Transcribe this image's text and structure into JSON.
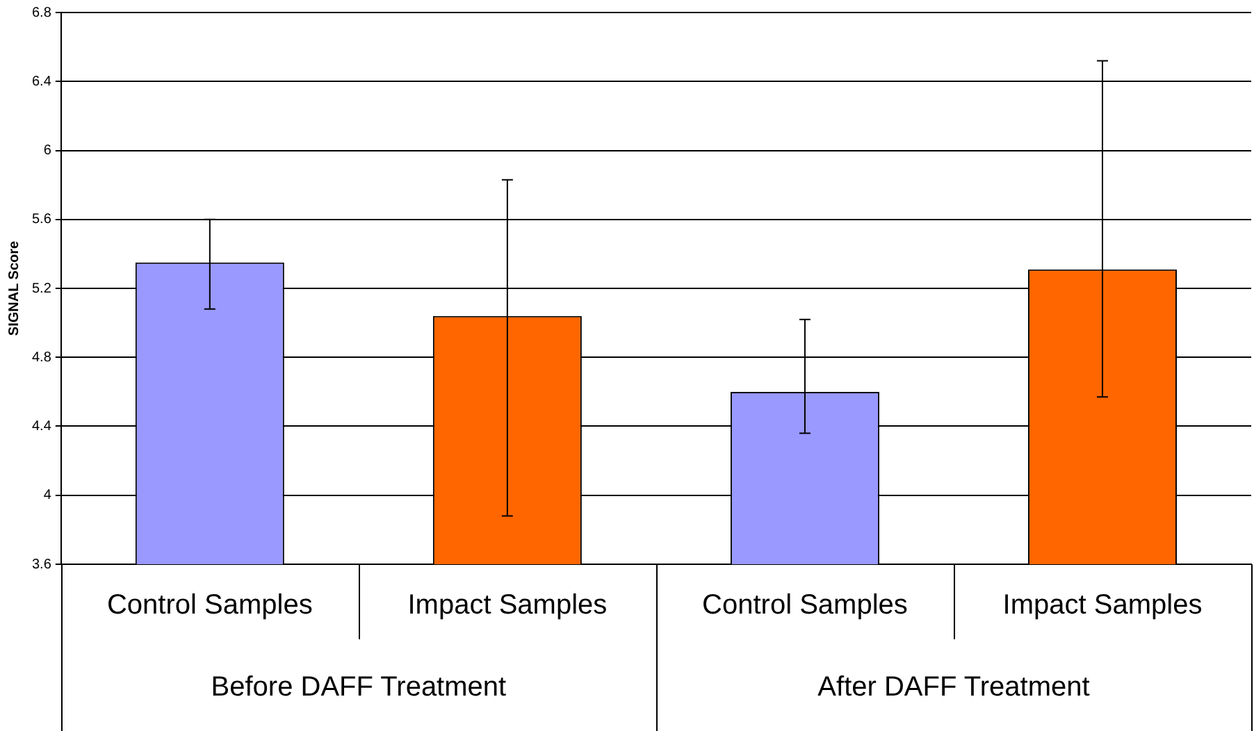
{
  "chart_data": {
    "type": "bar",
    "ylabel": "SIGNAL Score",
    "categories": [
      "Control Samples",
      "Impact Samples",
      "Control Samples",
      "Impact Samples"
    ],
    "values": [
      5.35,
      5.04,
      4.6,
      5.31
    ],
    "colors": [
      "#9999ff",
      "#ff6600",
      "#9999ff",
      "#ff6600"
    ],
    "errors": [
      [
        5.08,
        5.6
      ],
      [
        3.88,
        5.83
      ],
      [
        4.36,
        5.02
      ],
      [
        4.57,
        6.52
      ]
    ],
    "ylim": [
      3.6,
      6.8
    ],
    "yticks": [
      3.6,
      4,
      4.4,
      4.8,
      5.2,
      5.6,
      6,
      6.4,
      6.8
    ],
    "annotations": [
      "Before DAFF Treatment",
      "After DAFF Treatment"
    ],
    "grid": "y",
    "legend": false
  }
}
